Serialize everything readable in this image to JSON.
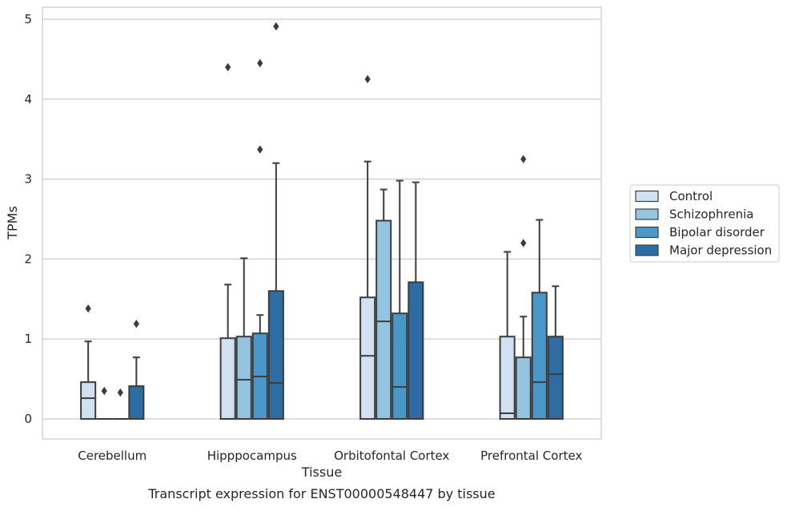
{
  "chart_data": {
    "type": "box",
    "title": "",
    "caption": "Transcript expression for ENST00000548447 by tissue",
    "xlabel": "Tissue",
    "ylabel": "TPMs",
    "ylim": [
      -0.25,
      5.15
    ],
    "yticks": [
      0,
      1,
      2,
      3,
      4,
      5
    ],
    "grid": true,
    "legend_position": "right",
    "categories": [
      "Cerebellum",
      "Hipppocampus",
      "Orbitofontal Cortex",
      "Prefrontal Cortex"
    ],
    "series": [
      {
        "name": "Control",
        "color": "#d0e1f2",
        "boxes": [
          {
            "q1": 0,
            "median": 0.26,
            "q3": 0.46,
            "whisker_low": 0,
            "whisker_high": 0.97,
            "outliers": [
              1.38
            ]
          },
          {
            "q1": 0,
            "median": 0,
            "q3": 1.01,
            "whisker_low": 0,
            "whisker_high": 1.68,
            "outliers": [
              4.4
            ]
          },
          {
            "q1": 0,
            "median": 0.79,
            "q3": 1.52,
            "whisker_low": 0,
            "whisker_high": 3.22,
            "outliers": [
              4.25
            ]
          },
          {
            "q1": 0,
            "median": 0.07,
            "q3": 1.03,
            "whisker_low": 0,
            "whisker_high": 2.09,
            "outliers": []
          }
        ]
      },
      {
        "name": "Schizophrenia",
        "color": "#94c4df",
        "boxes": [
          {
            "q1": 0,
            "median": 0,
            "q3": 0,
            "whisker_low": 0,
            "whisker_high": 0,
            "outliers": [
              0.35
            ]
          },
          {
            "q1": 0,
            "median": 0.49,
            "q3": 1.03,
            "whisker_low": 0,
            "whisker_high": 2.01,
            "outliers": []
          },
          {
            "q1": 0,
            "median": 1.22,
            "q3": 2.48,
            "whisker_low": 0,
            "whisker_high": 2.87,
            "outliers": []
          },
          {
            "q1": 0,
            "median": 0,
            "q3": 0.77,
            "whisker_low": 0,
            "whisker_high": 1.28,
            "outliers": [
              2.2,
              3.25
            ]
          }
        ]
      },
      {
        "name": "Bipolar disorder",
        "color": "#4a98c9",
        "boxes": [
          {
            "q1": 0,
            "median": 0,
            "q3": 0,
            "whisker_low": 0,
            "whisker_high": 0,
            "outliers": [
              0.33
            ]
          },
          {
            "q1": 0,
            "median": 0.53,
            "q3": 1.07,
            "whisker_low": 0,
            "whisker_high": 1.3,
            "outliers": [
              3.37,
              4.45
            ]
          },
          {
            "q1": 0,
            "median": 0.4,
            "q3": 1.32,
            "whisker_low": 0,
            "whisker_high": 2.98,
            "outliers": []
          },
          {
            "q1": 0,
            "median": 0.46,
            "q3": 1.58,
            "whisker_low": 0,
            "whisker_high": 2.49,
            "outliers": []
          }
        ]
      },
      {
        "name": "Major depression",
        "color": "#2e6da4",
        "boxes": [
          {
            "q1": 0,
            "median": 0,
            "q3": 0.41,
            "whisker_low": 0,
            "whisker_high": 0.77,
            "outliers": [
              1.19
            ]
          },
          {
            "q1": 0,
            "median": 0.45,
            "q3": 1.6,
            "whisker_low": 0,
            "whisker_high": 3.2,
            "outliers": [
              4.91
            ]
          },
          {
            "q1": 0,
            "median": 0,
            "q3": 1.71,
            "whisker_low": 0,
            "whisker_high": 2.96,
            "outliers": []
          },
          {
            "q1": 0,
            "median": 0.56,
            "q3": 1.03,
            "whisker_low": 0,
            "whisker_high": 1.66,
            "outliers": []
          }
        ]
      }
    ]
  }
}
